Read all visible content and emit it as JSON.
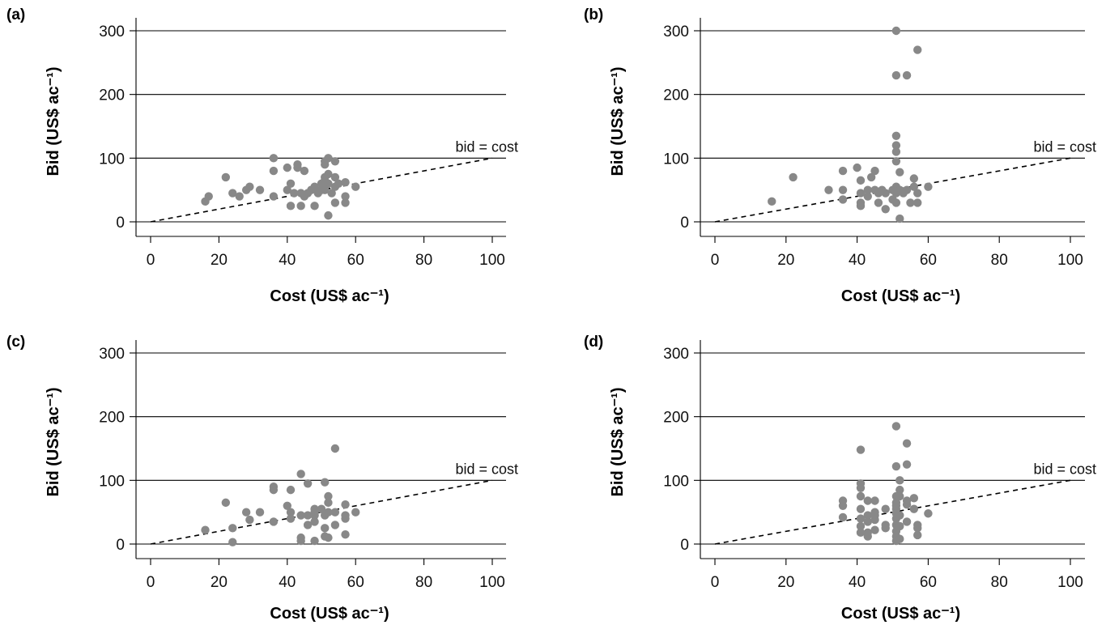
{
  "colors": {
    "points": "#888888",
    "lines": "#000000"
  },
  "chart_data": [
    {
      "type": "scatter",
      "panel_label": "(a)",
      "xlabel": "Cost (US$ ac⁻¹)",
      "ylabel": "Bid (US$ ac⁻¹)",
      "xlim": [
        0,
        100
      ],
      "ylim": [
        0,
        300
      ],
      "xticks": [
        "0",
        "20",
        "40",
        "60",
        "80",
        "100"
      ],
      "yticks": [
        "0",
        "100",
        "200",
        "300"
      ],
      "grid": "horizontal",
      "reference_line": {
        "label": "bid = cost",
        "from": [
          0,
          0
        ],
        "to": [
          100,
          100
        ]
      },
      "points": [
        [
          16,
          32
        ],
        [
          17,
          40
        ],
        [
          22,
          70
        ],
        [
          24,
          45
        ],
        [
          26,
          40
        ],
        [
          28,
          50
        ],
        [
          29,
          55
        ],
        [
          32,
          50
        ],
        [
          36,
          100
        ],
        [
          36,
          80
        ],
        [
          36,
          40
        ],
        [
          40,
          85
        ],
        [
          40,
          50
        ],
        [
          41,
          60
        ],
        [
          41,
          25
        ],
        [
          42,
          45
        ],
        [
          43,
          90
        ],
        [
          43,
          85
        ],
        [
          44,
          45
        ],
        [
          44,
          25
        ],
        [
          45,
          80
        ],
        [
          45,
          40
        ],
        [
          46,
          45
        ],
        [
          47,
          50
        ],
        [
          48,
          55
        ],
        [
          48,
          25
        ],
        [
          49,
          45
        ],
        [
          50,
          60
        ],
        [
          50,
          50
        ],
        [
          51,
          95
        ],
        [
          51,
          90
        ],
        [
          51,
          70
        ],
        [
          51,
          65
        ],
        [
          51,
          55
        ],
        [
          51,
          50
        ],
        [
          52,
          100
        ],
        [
          52,
          75
        ],
        [
          52,
          60
        ],
        [
          52,
          10
        ],
        [
          53,
          45
        ],
        [
          54,
          95
        ],
        [
          54,
          70
        ],
        [
          54,
          55
        ],
        [
          54,
          30
        ],
        [
          55,
          60
        ],
        [
          57,
          62
        ],
        [
          57,
          40
        ],
        [
          57,
          30
        ],
        [
          60,
          55
        ]
      ]
    },
    {
      "type": "scatter",
      "panel_label": "(b)",
      "xlabel": "Cost (US$ ac⁻¹)",
      "ylabel": "Bid (US$ ac⁻¹)",
      "xlim": [
        0,
        100
      ],
      "ylim": [
        0,
        300
      ],
      "xticks": [
        "0",
        "20",
        "40",
        "60",
        "80",
        "100"
      ],
      "yticks": [
        "0",
        "100",
        "200",
        "300"
      ],
      "grid": "horizontal",
      "reference_line": {
        "label": "bid = cost",
        "from": [
          0,
          0
        ],
        "to": [
          100,
          100
        ]
      },
      "points": [
        [
          16,
          32
        ],
        [
          22,
          70
        ],
        [
          32,
          50
        ],
        [
          36,
          80
        ],
        [
          36,
          50
        ],
        [
          36,
          35
        ],
        [
          40,
          85
        ],
        [
          41,
          65
        ],
        [
          41,
          45
        ],
        [
          41,
          30
        ],
        [
          41,
          25
        ],
        [
          43,
          50
        ],
        [
          43,
          40
        ],
        [
          44,
          70
        ],
        [
          45,
          80
        ],
        [
          45,
          50
        ],
        [
          46,
          30
        ],
        [
          46,
          45
        ],
        [
          47,
          50
        ],
        [
          48,
          45
        ],
        [
          48,
          20
        ],
        [
          50,
          50
        ],
        [
          50,
          35
        ],
        [
          51,
          300
        ],
        [
          51,
          230
        ],
        [
          51,
          135
        ],
        [
          51,
          120
        ],
        [
          51,
          110
        ],
        [
          51,
          95
        ],
        [
          51,
          55
        ],
        [
          51,
          45
        ],
        [
          51,
          30
        ],
        [
          52,
          78
        ],
        [
          52,
          50
        ],
        [
          52,
          5
        ],
        [
          53,
          45
        ],
        [
          54,
          230
        ],
        [
          54,
          50
        ],
        [
          55,
          30
        ],
        [
          56,
          68
        ],
        [
          56,
          55
        ],
        [
          57,
          270
        ],
        [
          57,
          45
        ],
        [
          57,
          30
        ],
        [
          60,
          55
        ]
      ]
    },
    {
      "type": "scatter",
      "panel_label": "(c)",
      "xlabel": "Cost (US$ ac⁻¹)",
      "ylabel": "Bid (US$ ac⁻¹)",
      "xlim": [
        0,
        100
      ],
      "ylim": [
        0,
        300
      ],
      "xticks": [
        "0",
        "20",
        "40",
        "60",
        "80",
        "100"
      ],
      "yticks": [
        "0",
        "100",
        "200",
        "300"
      ],
      "grid": "horizontal",
      "reference_line": {
        "label": "bid = cost",
        "from": [
          0,
          0
        ],
        "to": [
          100,
          100
        ]
      },
      "points": [
        [
          16,
          22
        ],
        [
          22,
          65
        ],
        [
          24,
          25
        ],
        [
          24,
          3
        ],
        [
          28,
          50
        ],
        [
          29,
          38
        ],
        [
          32,
          50
        ],
        [
          36,
          90
        ],
        [
          36,
          85
        ],
        [
          36,
          35
        ],
        [
          40,
          60
        ],
        [
          41,
          85
        ],
        [
          41,
          50
        ],
        [
          41,
          40
        ],
        [
          44,
          110
        ],
        [
          44,
          45
        ],
        [
          44,
          10
        ],
        [
          44,
          5
        ],
        [
          46,
          95
        ],
        [
          46,
          45
        ],
        [
          46,
          30
        ],
        [
          48,
          55
        ],
        [
          48,
          50
        ],
        [
          48,
          45
        ],
        [
          48,
          35
        ],
        [
          48,
          5
        ],
        [
          50,
          55
        ],
        [
          51,
          97
        ],
        [
          51,
          45
        ],
        [
          51,
          25
        ],
        [
          51,
          12
        ],
        [
          52,
          75
        ],
        [
          52,
          65
        ],
        [
          52,
          50
        ],
        [
          52,
          10
        ],
        [
          54,
          150
        ],
        [
          54,
          50
        ],
        [
          54,
          30
        ],
        [
          57,
          62
        ],
        [
          57,
          45
        ],
        [
          57,
          40
        ],
        [
          57,
          15
        ],
        [
          60,
          50
        ]
      ]
    },
    {
      "type": "scatter",
      "panel_label": "(d)",
      "xlabel": "Cost (US$ ac⁻¹)",
      "ylabel": "Bid (US$ ac⁻¹)",
      "xlim": [
        0,
        100
      ],
      "ylim": [
        0,
        300
      ],
      "xticks": [
        "0",
        "20",
        "40",
        "60",
        "80",
        "100"
      ],
      "yticks": [
        "0",
        "100",
        "200",
        "300"
      ],
      "grid": "horizontal",
      "reference_line": {
        "label": "bid = cost",
        "from": [
          0,
          0
        ],
        "to": [
          100,
          100
        ]
      },
      "points": [
        [
          36,
          68
        ],
        [
          36,
          60
        ],
        [
          36,
          42
        ],
        [
          41,
          148
        ],
        [
          41,
          95
        ],
        [
          41,
          88
        ],
        [
          41,
          75
        ],
        [
          41,
          55
        ],
        [
          41,
          40
        ],
        [
          41,
          28
        ],
        [
          41,
          18
        ],
        [
          43,
          68
        ],
        [
          43,
          45
        ],
        [
          43,
          35
        ],
        [
          43,
          18
        ],
        [
          43,
          12
        ],
        [
          45,
          68
        ],
        [
          45,
          50
        ],
        [
          45,
          45
        ],
        [
          45,
          38
        ],
        [
          45,
          22
        ],
        [
          48,
          25
        ],
        [
          48,
          30
        ],
        [
          48,
          55
        ],
        [
          51,
          185
        ],
        [
          51,
          122
        ],
        [
          51,
          75
        ],
        [
          51,
          65
        ],
        [
          51,
          60
        ],
        [
          51,
          55
        ],
        [
          51,
          48
        ],
        [
          51,
          40
        ],
        [
          51,
          30
        ],
        [
          51,
          20
        ],
        [
          51,
          12
        ],
        [
          51,
          5
        ],
        [
          52,
          100
        ],
        [
          52,
          85
        ],
        [
          52,
          75
        ],
        [
          52,
          45
        ],
        [
          52,
          28
        ],
        [
          52,
          8
        ],
        [
          54,
          158
        ],
        [
          54,
          125
        ],
        [
          54,
          68
        ],
        [
          54,
          62
        ],
        [
          54,
          35
        ],
        [
          56,
          72
        ],
        [
          56,
          55
        ],
        [
          57,
          30
        ],
        [
          57,
          25
        ],
        [
          57,
          14
        ],
        [
          60,
          48
        ]
      ]
    }
  ]
}
